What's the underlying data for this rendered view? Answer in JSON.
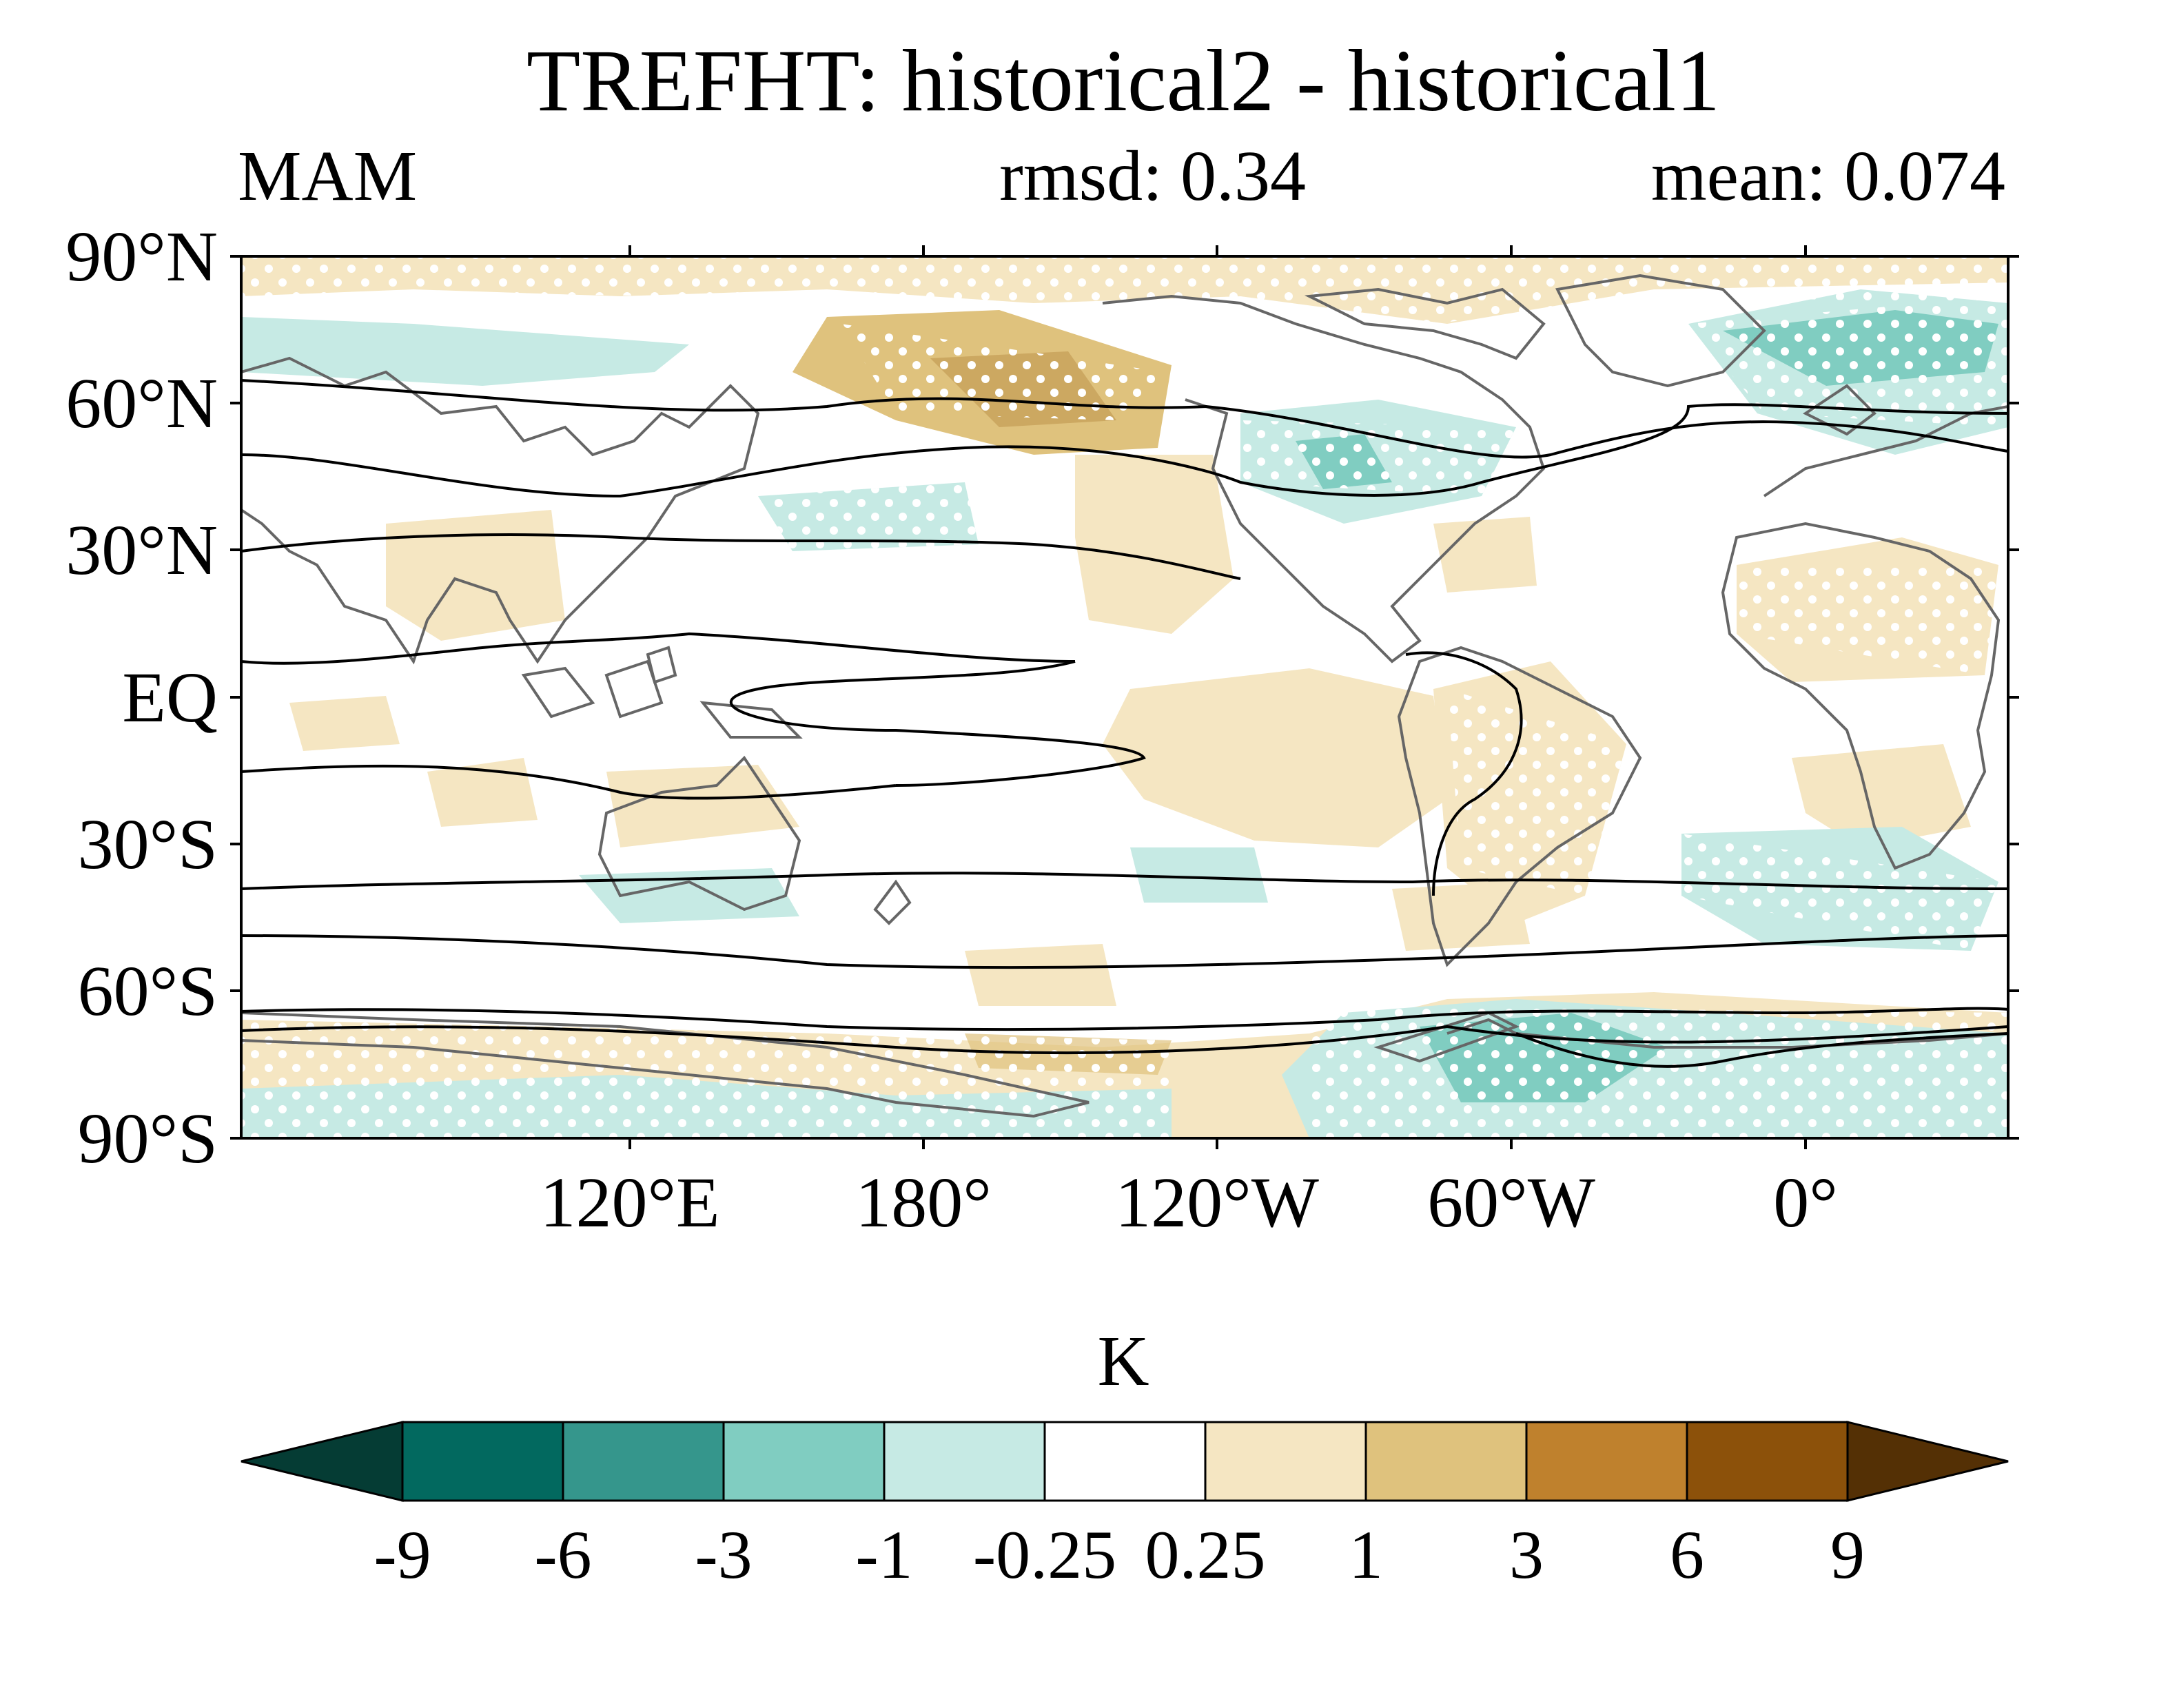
{
  "header": {
    "title": "TREFHT: historical2 - historical1",
    "season": "MAM",
    "rmsd_label": "rmsd: 0.34",
    "mean_label": "mean: 0.074"
  },
  "map": {
    "lat_labels": [
      "90°N",
      "60°N",
      "30°N",
      "EQ",
      "30°S",
      "60°S",
      "90°S"
    ],
    "lon_labels": [
      "120°E",
      "180°",
      "120°W",
      "60°W",
      "0°"
    ]
  },
  "colorbar": {
    "unit": "K",
    "levels": [
      "-9",
      "-6",
      "-3",
      "-1",
      "-0.25",
      "0.25",
      "1",
      "3",
      "6",
      "9"
    ],
    "colors": [
      "#053c34",
      "#02695f",
      "#35968c",
      "#80cdc1",
      "#c6eae4",
      "#ffffff",
      "#f5e6c2",
      "#dfc27d",
      "#bf812d",
      "#8c510a",
      "#543005"
    ]
  },
  "colors": {
    "warm_light": "#f5e6c2",
    "warm_mid": "#dfc27d",
    "cool_light": "#c6eae4",
    "cool_mid": "#80cdc1",
    "cool_dark": "#35968c",
    "coastline": "#666666",
    "contour": "#000000"
  }
}
